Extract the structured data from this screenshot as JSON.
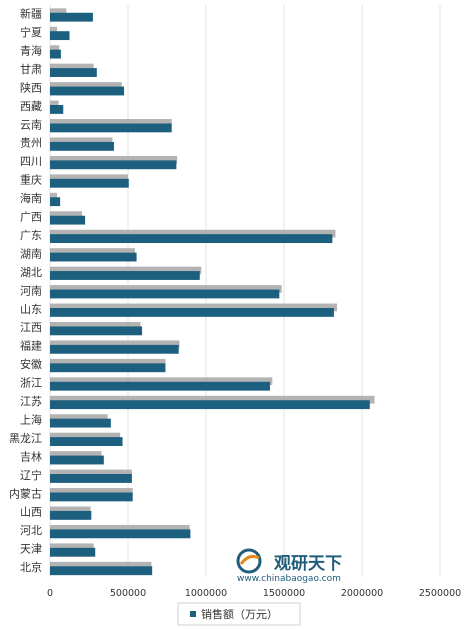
{
  "chart_data": {
    "type": "bar",
    "orientation": "horizontal",
    "categories": [
      "新疆",
      "宁夏",
      "青海",
      "甘肃",
      "陕西",
      "西藏",
      "云南",
      "贵州",
      "四川",
      "重庆",
      "海南",
      "广西",
      "广东",
      "湖南",
      "湖北",
      "河南",
      "山东",
      "江西",
      "福建",
      "安徽",
      "浙江",
      "江苏",
      "上海",
      "黑龙江",
      "吉林",
      "辽宁",
      "内蒙古",
      "山西",
      "河北",
      "天津",
      "北京"
    ],
    "series": [
      {
        "name": "销售额（万元）",
        "color": "#1d5f7f",
        "values": [
          275000,
          125000,
          70000,
          300000,
          475000,
          85000,
          780000,
          410000,
          810000,
          505000,
          65000,
          225000,
          1810000,
          555000,
          960000,
          1470000,
          1820000,
          590000,
          825000,
          740000,
          1410000,
          2050000,
          390000,
          465000,
          345000,
          525000,
          530000,
          265000,
          900000,
          290000,
          655000
        ]
      },
      {
        "name": "",
        "color": "#a6a6a6",
        "values": [
          105000,
          45000,
          60000,
          280000,
          460000,
          55000,
          780000,
          400000,
          815000,
          500000,
          45000,
          205000,
          1830000,
          545000,
          970000,
          1485000,
          1840000,
          580000,
          830000,
          740000,
          1425000,
          2080000,
          370000,
          450000,
          330000,
          525000,
          530000,
          260000,
          895000,
          280000,
          650000
        ]
      }
    ],
    "xlim": [
      0,
      2500000
    ],
    "xticks": [
      "0",
      "500000",
      "1000000",
      "1500000",
      "2000000",
      "2500000"
    ],
    "xtick_values": [
      0,
      500000,
      1000000,
      1500000,
      2000000,
      2500000
    ],
    "grid": true,
    "legend_position": "bottom",
    "title": "",
    "xlabel": "",
    "ylabel": ""
  },
  "legend": {
    "label": "销售额（万元）"
  },
  "watermark": {
    "title": "观研天下",
    "url": "www.chinabaogao.com",
    "icon": "chinabaogao-logo-icon"
  }
}
